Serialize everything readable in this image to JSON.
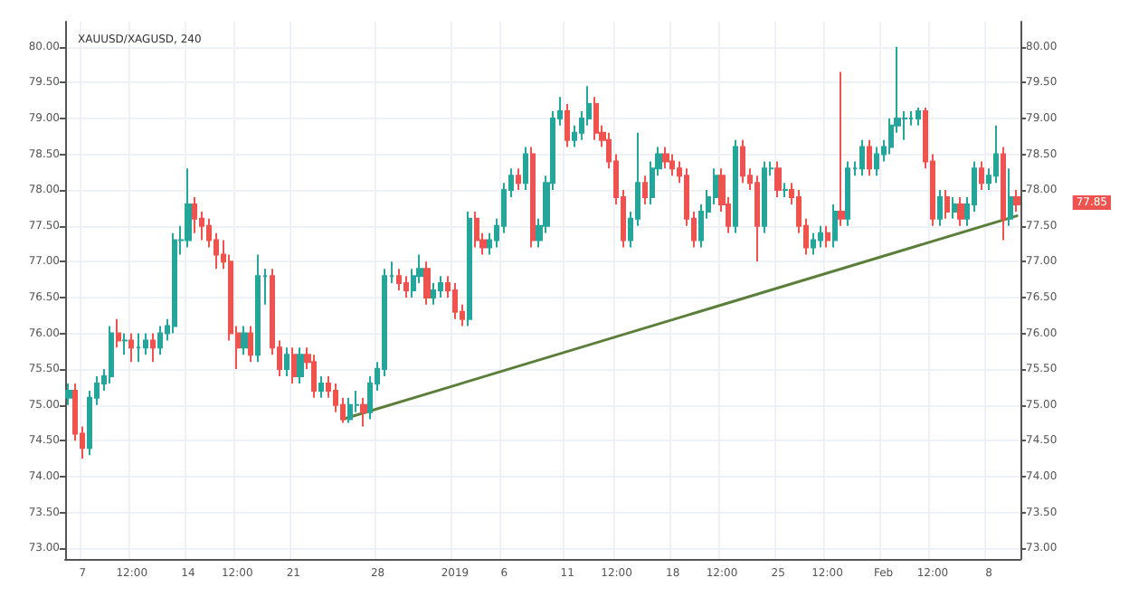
{
  "chart_data": {
    "type": "candlestick",
    "title": "XAUUSD/XAGUSD, 240",
    "categories": [
      null,
      null,
      "7",
      null,
      null,
      null,
      null,
      null,
      null,
      "12:00",
      null,
      null,
      null,
      null,
      null,
      null,
      null,
      "14",
      null,
      null,
      null,
      null,
      null,
      null,
      "12:00",
      null,
      null,
      null,
      null,
      null,
      null,
      null,
      "21",
      null,
      null,
      null,
      null,
      null,
      null,
      null,
      null,
      null,
      null,
      null,
      "28",
      null,
      null,
      null,
      null,
      null,
      null,
      null,
      null,
      null,
      null,
      "2019",
      null,
      null,
      null,
      null,
      null,
      null,
      "6",
      null,
      null,
      null,
      null,
      null,
      null,
      null,
      null,
      "11",
      null,
      null,
      null,
      null,
      null,
      null,
      "12:00",
      null,
      null,
      null,
      null,
      null,
      null,
      null,
      "18",
      null,
      null,
      null,
      null,
      null,
      null,
      "12:00",
      null,
      null,
      null,
      null,
      null,
      null,
      null,
      "25",
      null,
      null,
      null,
      null,
      null,
      null,
      "12:00",
      null,
      null,
      null,
      null,
      null,
      null,
      null,
      "Feb",
      null,
      null,
      null,
      null,
      null,
      null,
      "12:00",
      null,
      null,
      null,
      null,
      null,
      null,
      null,
      "8",
      null,
      null,
      null,
      null
    ],
    "series": [
      {
        "colors": [
          "#26a69a",
          "#ef5350",
          "#ef5350",
          "#26a69a",
          "#26a69a",
          "#26a69a",
          "#26a69a",
          "#ef5350",
          "#26a69a",
          "#ef5350",
          "#26a69a",
          "#26a69a",
          "#ef5350",
          "#26a69a",
          "#26a69a",
          "#26a69a",
          "#26a69a",
          "#26a69a",
          "#ef5350",
          "#ef5350",
          "#ef5350",
          "#ef5350",
          "#ef5350",
          "#ef5350",
          "#ef5350",
          "#26a69a",
          "#ef5350",
          "#26a69a",
          "#26a69a",
          "#ef5350",
          "#ef5350",
          "#26a69a",
          "#ef5350",
          "#26a69a",
          "#ef5350",
          "#ef5350",
          "#26a69a",
          "#ef5350",
          "#ef5350",
          "#ef5350",
          "#26a69a",
          "#26a69a",
          "#ef5350",
          "#26a69a",
          "#26a69a",
          "#26a69a",
          "#26a69a",
          "#ef5350",
          "#ef5350",
          "#26a69a",
          "#26a69a",
          "#ef5350",
          "#26a69a",
          "#26a69a",
          "#ef5350",
          "#ef5350",
          "#ef5350",
          "#26a69a",
          "#ef5350",
          "#ef5350",
          "#26a69a",
          "#26a69a",
          "#26a69a",
          "#26a69a",
          "#ef5350",
          "#26a69a",
          "#ef5350",
          "#26a69a",
          "#26a69a",
          "#26a69a",
          "#26a69a",
          "#ef5350",
          "#26a69a",
          "#26a69a",
          "#26a69a",
          "#ef5350",
          "#ef5350",
          "#ef5350",
          "#ef5350",
          "#ef5350",
          "#26a69a",
          "#26a69a",
          "#ef5350",
          "#26a69a",
          "#26a69a",
          "#ef5350",
          "#ef5350",
          "#ef5350",
          "#ef5350",
          "#ef5350",
          "#26a69a",
          "#26a69a",
          "#26a69a",
          "#ef5350",
          "#ef5350",
          "#26a69a",
          "#ef5350",
          "#ef5350",
          "#ef5350",
          "#26a69a",
          "#26a69a",
          "#ef5350",
          "#26a69a",
          "#ef5350",
          "#ef5350",
          "#ef5350",
          "#26a69a",
          "#26a69a",
          "#ef5350",
          "#26a69a",
          "#ef5350",
          "#26a69a",
          "#26a69a",
          "#26a69a",
          "#ef5350",
          "#26a69a",
          "#26a69a",
          "#26a69a",
          "#26a69a",
          "#26a69a",
          "#26a69a",
          "#26a69a",
          "#ef5350",
          "#ef5350",
          "#26a69a",
          "#ef5350",
          "#26a69a",
          "#ef5350",
          "#26a69a",
          "#26a69a",
          "#ef5350",
          "#26a69a",
          "#26a69a",
          "#ef5350",
          "#26a69a",
          "#ef5350"
        ],
        "ohlc": [
          [
            75.1,
            75.3,
            75.0,
            75.2
          ],
          [
            75.2,
            75.3,
            74.5,
            74.6
          ],
          [
            74.6,
            74.7,
            74.25,
            74.4
          ],
          [
            74.4,
            75.2,
            74.3,
            75.1
          ],
          [
            75.1,
            75.4,
            75.0,
            75.3
          ],
          [
            75.3,
            75.5,
            75.2,
            75.4
          ],
          [
            75.4,
            76.1,
            75.3,
            76.0
          ],
          [
            76.0,
            76.2,
            75.8,
            75.9
          ],
          [
            75.9,
            76.0,
            75.7,
            75.9
          ],
          [
            75.9,
            76.0,
            75.6,
            75.8
          ],
          [
            75.8,
            76.0,
            75.6,
            75.8
          ],
          [
            75.8,
            76.0,
            75.7,
            75.9
          ],
          [
            75.9,
            76.0,
            75.6,
            75.8
          ],
          [
            75.8,
            76.1,
            75.7,
            76.0
          ],
          [
            76.0,
            76.2,
            75.9,
            76.1
          ],
          [
            76.1,
            77.4,
            76.0,
            77.3
          ],
          [
            77.3,
            77.5,
            77.1,
            77.3
          ],
          [
            77.3,
            78.3,
            77.2,
            77.8
          ],
          [
            77.8,
            77.9,
            77.4,
            77.6
          ],
          [
            77.6,
            77.7,
            77.3,
            77.5
          ],
          [
            77.5,
            77.6,
            77.2,
            77.3
          ],
          [
            77.3,
            77.4,
            76.9,
            77.1
          ],
          [
            77.1,
            77.3,
            76.9,
            77.0
          ],
          [
            77.0,
            77.1,
            75.9,
            76.0
          ],
          [
            76.0,
            76.1,
            75.5,
            75.8
          ],
          [
            75.8,
            76.1,
            75.7,
            76.0
          ],
          [
            76.0,
            76.1,
            75.6,
            75.7
          ],
          [
            75.7,
            77.1,
            75.6,
            76.8
          ],
          [
            76.8,
            76.9,
            76.4,
            76.8
          ],
          [
            76.8,
            76.9,
            75.7,
            75.8
          ],
          [
            75.8,
            75.9,
            75.4,
            75.5
          ],
          [
            75.5,
            75.8,
            75.4,
            75.7
          ],
          [
            75.7,
            75.8,
            75.3,
            75.4
          ],
          [
            75.4,
            75.8,
            75.3,
            75.7
          ],
          [
            75.7,
            75.8,
            75.5,
            75.6
          ],
          [
            75.6,
            75.7,
            75.1,
            75.2
          ],
          [
            75.2,
            75.4,
            75.1,
            75.3
          ],
          [
            75.3,
            75.4,
            75.1,
            75.2
          ],
          [
            75.2,
            75.3,
            74.9,
            75.0
          ],
          [
            75.0,
            75.1,
            74.75,
            74.8
          ],
          [
            74.8,
            75.1,
            74.75,
            75.0
          ],
          [
            75.0,
            75.2,
            74.9,
            75.0
          ],
          [
            75.0,
            75.1,
            74.7,
            74.9
          ],
          [
            74.9,
            75.4,
            74.8,
            75.3
          ],
          [
            75.3,
            75.6,
            75.2,
            75.5
          ],
          [
            75.5,
            76.9,
            75.4,
            76.8
          ],
          [
            76.8,
            77.0,
            76.7,
            76.8
          ],
          [
            76.8,
            76.9,
            76.6,
            76.7
          ],
          [
            76.7,
            76.8,
            76.5,
            76.6
          ],
          [
            76.6,
            76.9,
            76.5,
            76.8
          ],
          [
            76.8,
            77.1,
            76.7,
            76.9
          ],
          [
            76.9,
            77.0,
            76.4,
            76.5
          ],
          [
            76.5,
            76.7,
            76.4,
            76.6
          ],
          [
            76.6,
            76.8,
            76.5,
            76.7
          ],
          [
            76.7,
            76.8,
            76.5,
            76.6
          ],
          [
            76.6,
            76.7,
            76.2,
            76.3
          ],
          [
            76.3,
            76.4,
            76.1,
            76.2
          ],
          [
            76.2,
            77.7,
            76.1,
            77.6
          ],
          [
            77.6,
            77.7,
            77.2,
            77.3
          ],
          [
            77.3,
            77.4,
            77.1,
            77.2
          ],
          [
            77.2,
            77.4,
            77.1,
            77.3
          ],
          [
            77.3,
            77.6,
            77.2,
            77.5
          ],
          [
            77.5,
            78.1,
            77.4,
            78.0
          ],
          [
            78.0,
            78.3,
            77.9,
            78.2
          ],
          [
            78.2,
            78.3,
            78.0,
            78.1
          ],
          [
            78.1,
            78.6,
            78.0,
            78.5
          ],
          [
            78.5,
            78.6,
            77.2,
            77.3
          ],
          [
            77.3,
            77.6,
            77.2,
            77.5
          ],
          [
            77.5,
            78.2,
            77.4,
            78.1
          ],
          [
            78.1,
            79.1,
            78.0,
            79.0
          ],
          [
            79.0,
            79.3,
            78.9,
            79.1
          ],
          [
            79.1,
            79.2,
            78.6,
            78.7
          ],
          [
            78.7,
            78.9,
            78.6,
            78.8
          ],
          [
            78.8,
            79.1,
            78.7,
            79.0
          ],
          [
            79.0,
            79.45,
            78.9,
            79.2
          ],
          [
            79.2,
            79.3,
            78.7,
            78.8
          ],
          [
            78.8,
            78.9,
            78.6,
            78.7
          ],
          [
            78.7,
            78.8,
            78.3,
            78.4
          ],
          [
            78.4,
            78.5,
            77.8,
            77.9
          ],
          [
            77.9,
            78.0,
            77.2,
            77.3
          ],
          [
            77.3,
            77.7,
            77.2,
            77.6
          ],
          [
            77.6,
            78.8,
            77.5,
            78.1
          ],
          [
            78.1,
            78.2,
            77.8,
            77.9
          ],
          [
            77.9,
            78.4,
            77.8,
            78.3
          ],
          [
            78.3,
            78.6,
            78.2,
            78.5
          ],
          [
            78.5,
            78.6,
            78.3,
            78.4
          ],
          [
            78.4,
            78.5,
            78.2,
            78.3
          ],
          [
            78.3,
            78.4,
            78.1,
            78.2
          ],
          [
            78.2,
            78.3,
            77.5,
            77.6
          ],
          [
            77.6,
            77.7,
            77.2,
            77.3
          ],
          [
            77.3,
            77.8,
            77.2,
            77.7
          ],
          [
            77.7,
            78.0,
            77.6,
            77.9
          ],
          [
            77.9,
            78.3,
            77.8,
            78.2
          ],
          [
            78.2,
            78.3,
            77.7,
            77.8
          ],
          [
            77.8,
            77.9,
            77.4,
            77.5
          ],
          [
            77.5,
            78.7,
            77.4,
            78.6
          ],
          [
            78.6,
            78.7,
            78.1,
            78.2
          ],
          [
            78.2,
            78.3,
            78.0,
            78.1
          ],
          [
            78.1,
            78.2,
            77.0,
            77.5
          ],
          [
            77.5,
            78.4,
            77.4,
            78.3
          ],
          [
            78.3,
            78.4,
            78.2,
            78.3
          ],
          [
            78.3,
            78.4,
            77.9,
            78.0
          ],
          [
            78.0,
            78.1,
            77.9,
            78.0
          ],
          [
            78.0,
            78.1,
            77.8,
            77.9
          ],
          [
            77.9,
            78.0,
            77.4,
            77.5
          ],
          [
            77.5,
            77.6,
            77.1,
            77.2
          ],
          [
            77.2,
            77.4,
            77.1,
            77.3
          ],
          [
            77.3,
            77.5,
            77.2,
            77.4
          ],
          [
            77.4,
            77.5,
            77.2,
            77.3
          ],
          [
            77.3,
            77.8,
            77.2,
            77.7
          ],
          [
            77.7,
            79.65,
            77.5,
            77.6
          ],
          [
            77.6,
            78.4,
            77.5,
            78.3
          ],
          [
            78.3,
            78.4,
            78.2,
            78.3
          ],
          [
            78.3,
            78.7,
            78.2,
            78.6
          ],
          [
            78.6,
            78.7,
            78.2,
            78.3
          ],
          [
            78.3,
            78.6,
            78.2,
            78.5
          ],
          [
            78.5,
            78.7,
            78.4,
            78.6
          ],
          [
            78.6,
            79.0,
            78.5,
            78.9
          ],
          [
            78.9,
            80.0,
            78.8,
            79.0
          ],
          [
            79.0,
            79.1,
            78.7,
            79.0
          ],
          [
            79.0,
            79.1,
            78.9,
            79.0
          ],
          [
            79.0,
            79.15,
            78.9,
            79.1
          ],
          [
            79.1,
            79.15,
            78.3,
            78.4
          ],
          [
            78.4,
            78.5,
            77.5,
            77.6
          ],
          [
            77.6,
            78.0,
            77.5,
            77.9
          ],
          [
            77.9,
            78.0,
            77.6,
            77.7
          ],
          [
            77.7,
            77.9,
            77.6,
            77.8
          ],
          [
            77.8,
            77.9,
            77.5,
            77.6
          ],
          [
            77.6,
            77.9,
            77.5,
            77.8
          ],
          [
            77.8,
            78.4,
            77.7,
            78.3
          ],
          [
            78.3,
            78.4,
            78.0,
            78.1
          ],
          [
            78.1,
            78.3,
            78.0,
            78.2
          ],
          [
            78.2,
            78.9,
            78.1,
            78.5
          ],
          [
            78.5,
            78.6,
            77.3,
            77.6
          ],
          [
            77.6,
            78.3,
            77.5,
            77.9
          ],
          [
            77.9,
            78.0,
            77.7,
            77.8
          ]
        ]
      },
      {
        "type": "line",
        "color": "#5b7f3a",
        "values": [
          null,
          null,
          null,
          null,
          null,
          null,
          null,
          null,
          null,
          null,
          null,
          null,
          null,
          null,
          null,
          null,
          null,
          null,
          null,
          null,
          null,
          null,
          null,
          null,
          null,
          null,
          null,
          null,
          null,
          null,
          null,
          null,
          null,
          null,
          null,
          null,
          null,
          null,
          null,
          74.8,
          null,
          null,
          null,
          null,
          null,
          null,
          null,
          null,
          null,
          null,
          null,
          null,
          null,
          null,
          null,
          null,
          null,
          null,
          null,
          null,
          null,
          null,
          null,
          null,
          null,
          null,
          null,
          null,
          null,
          null,
          null,
          null,
          null,
          null,
          null,
          null,
          null,
          null,
          null,
          null,
          null,
          null,
          null,
          null,
          null,
          null,
          null,
          null,
          null,
          null,
          null,
          null,
          null,
          null,
          null,
          null,
          null,
          null,
          null,
          null,
          null,
          null,
          null,
          null,
          null,
          null,
          null,
          null,
          null,
          null,
          null,
          null,
          null,
          null,
          null,
          null,
          null,
          null,
          null,
          null,
          null,
          null,
          null,
          null,
          null,
          null,
          null,
          null,
          null,
          null,
          null,
          null,
          null,
          null,
          null,
          77.64
        ]
      }
    ],
    "ylim": [
      72.85,
      80.35
    ],
    "yticks": [
      {
        "value": 73,
        "label": "73.00"
      },
      {
        "value": 73.5,
        "label": "73.50"
      },
      {
        "value": 74,
        "label": "74.00"
      },
      {
        "value": 74.5,
        "label": "74.50"
      },
      {
        "value": 75,
        "label": "75.00"
      },
      {
        "value": 75.5,
        "label": "75.50"
      },
      {
        "value": 76,
        "label": "76.00"
      },
      {
        "value": 76.5,
        "label": "76.50"
      },
      {
        "value": 77,
        "label": "77.00"
      },
      {
        "value": 77.5,
        "label": "77.50"
      },
      {
        "value": 78,
        "label": "78.00"
      },
      {
        "value": 78.5,
        "label": "78.50"
      },
      {
        "value": 79,
        "label": "79.00"
      },
      {
        "value": 79.5,
        "label": "79.50"
      },
      {
        "value": 80,
        "label": "80.00"
      }
    ],
    "y2lim": [
      72.85,
      80.35
    ],
    "y2ticks": [
      {
        "value": 73,
        "label": "73.00"
      },
      {
        "value": 73.5,
        "label": "73.50"
      },
      {
        "value": 74,
        "label": "74.00"
      },
      {
        "value": 74.5,
        "label": "74.50"
      },
      {
        "value": 75,
        "label": "75.00"
      },
      {
        "value": 75.5,
        "label": "75.50"
      },
      {
        "value": 76,
        "label": "76.00"
      },
      {
        "value": 76.5,
        "label": "76.50"
      },
      {
        "value": 77,
        "label": "77.00"
      },
      {
        "value": 77.5,
        "label": "77.50"
      },
      {
        "value": 78,
        "label": "78.00"
      },
      {
        "value": 78.5,
        "label": "78.50"
      },
      {
        "value": 79,
        "label": "79.00"
      },
      {
        "value": 79.5,
        "label": "79.50"
      },
      {
        "value": 80,
        "label": "80.00"
      }
    ],
    "annotations": [
      "77.85"
    ],
    "grid": true,
    "line_style": "solid"
  }
}
